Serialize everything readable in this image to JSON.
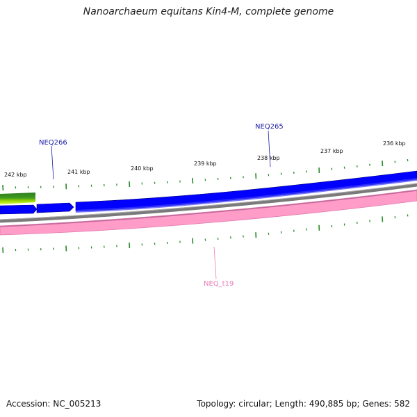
{
  "title": "Nanoarchaeum equitans Kin4-M, complete genome",
  "footer": {
    "accession": "Accession: NC_005213",
    "summary": "Topology: circular; Length: 490,885 bp; Genes: 582"
  },
  "ruler": {
    "unit": "kbp",
    "labels": [
      "242 kbp",
      "241 kbp",
      "240 kbp",
      "239 kbp",
      "238 kbp",
      "237 kbp",
      "236 kbp"
    ]
  },
  "features": [
    {
      "name": "NEQ266",
      "color": "#1a1aa6"
    },
    {
      "name": "NEQ265",
      "color": "#1a1aa6"
    },
    {
      "name": "NEQ_t19",
      "color": "#e77bb5"
    }
  ],
  "colors": {
    "cds": "#0000ff",
    "cds_shadow": "#0000a0",
    "backbone": "#808080",
    "trna": "#ff9cc8",
    "trna_edge": "#e87fb6",
    "tick": "#2a8a2a",
    "gc_dark": "#2e7d1e",
    "gc_light": "#a8e000"
  }
}
